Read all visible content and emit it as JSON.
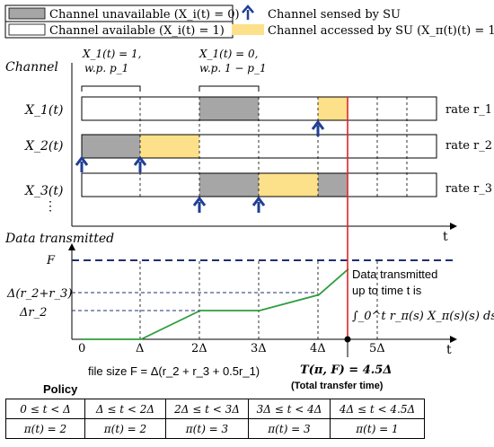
{
  "legend": {
    "unavailable": "Channel unavailable (X_i(t) = 0)",
    "available": "Channel available (X_i(t) = 1)",
    "sensed": "Channel sensed by SU",
    "accessed": "Channel accessed by SU (X_π(t)(t) = 1)"
  },
  "annotations": {
    "x1_equals_1": "X_1(t) = 1,",
    "x1_equals_1_prob": "w.p. p_1",
    "x1_equals_0": "X_1(t) = 0,",
    "x1_equals_0_prob": "w.p. 1 − p_1"
  },
  "channels": {
    "axis_label": "Channel",
    "ellipsis": "⋮",
    "time_label": "t",
    "rows": [
      {
        "label": "X_1(t)",
        "rate": "rate r_1"
      },
      {
        "label": "X_2(t)",
        "rate": "rate r_2"
      },
      {
        "label": "X_3(t)",
        "rate": "rate r_3"
      }
    ]
  },
  "data_plot": {
    "axis_label": "Data transmitted",
    "time_label": "t",
    "y_labels": [
      "F",
      "Δ(r_2+r_3)",
      "Δr_2"
    ],
    "x_labels": [
      "0",
      "Δ",
      "2Δ",
      "3Δ",
      "4Δ",
      "5Δ"
    ],
    "annotation_lines": [
      "Data transmitted",
      "up to time t is"
    ],
    "integral": "∫_0^t r_π(s) X_π(s)(s) ds",
    "file_size": "file size F = Δ(r_2 + r_3 + 0.5r_1)",
    "transfer_time": "T(π, F) = 4.5Δ",
    "transfer_note": "(Total transfer time)",
    "curve": [
      [
        0,
        0
      ],
      [
        1,
        0
      ],
      [
        2,
        1
      ],
      [
        3,
        1
      ],
      [
        4,
        1.55
      ],
      [
        4.5,
        2.45
      ]
    ]
  },
  "colors": {
    "unavailable": "#a6a6a6",
    "accessed": "#fde08a",
    "sensed_arrow": "#1f3f96",
    "curve": "#2e9d3c",
    "marker": "#e0242a",
    "dashed": "#1f2f6e"
  },
  "policy": {
    "title": "Policy",
    "intervals": [
      "0 ≤ t < Δ",
      "Δ ≤ t < 2Δ",
      "2Δ ≤ t < 3Δ",
      "3Δ ≤ t < 4Δ",
      "4Δ ≤ t < 4.5Δ"
    ],
    "actions": [
      "π(t) = 2",
      "π(t) = 2",
      "π(t) = 3",
      "π(t) = 3",
      "π(t) = 1"
    ]
  }
}
